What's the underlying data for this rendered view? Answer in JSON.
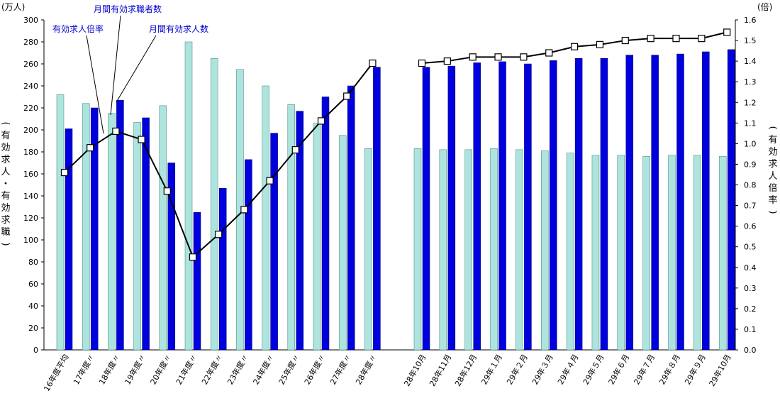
{
  "chart_data": {
    "type": "bar",
    "title": "",
    "left_unit": "(万人)",
    "right_unit": "(倍)",
    "left_axis_label": [
      "(",
      "有",
      "効",
      "求",
      "人",
      "・",
      "有",
      "効",
      "求",
      "職",
      ")"
    ],
    "right_axis_label": [
      "(",
      "有",
      "効",
      "求",
      "人",
      "倍",
      "率",
      ")"
    ],
    "ylim_left": [
      0,
      300
    ],
    "ylim_right": [
      0.0,
      1.6
    ],
    "left_ticks": [
      "0",
      "20",
      "40",
      "60",
      "80",
      "100",
      "120",
      "140",
      "160",
      "180",
      "200",
      "220",
      "240",
      "260",
      "280",
      "300"
    ],
    "right_ticks": [
      "0.0",
      "0.1",
      "0.2",
      "0.3",
      "0.4",
      "0.5",
      "0.6",
      "0.7",
      "0.8",
      "0.9",
      "1.0",
      "1.1",
      "1.2",
      "1.3",
      "1.4",
      "1.5",
      "1.6"
    ],
    "categories": [
      "16年度平均",
      "17年度〃",
      "18年度〃",
      "19年度〃",
      "20年度〃",
      "21年度〃",
      "22年度〃",
      "23年度〃",
      "24年度〃",
      "25年度〃",
      "26年度〃",
      "27年度〃",
      "28年度〃",
      "28年10月",
      "28年11月",
      "28年12月",
      "29年１月",
      "29年２月",
      "29年３月",
      "29年４月",
      "29年５月",
      "29年６月",
      "29年７月",
      "29年８月",
      "29年９月",
      "29年10月"
    ],
    "series": [
      {
        "name": "月間有効求職者数",
        "axis": "left",
        "color": "#aee4de",
        "values": [
          232,
          224,
          215,
          207,
          222,
          280,
          265,
          255,
          240,
          223,
          206,
          195,
          183,
          183,
          182,
          182,
          183,
          182,
          181,
          179,
          177,
          177,
          176,
          177,
          177,
          176
        ]
      },
      {
        "name": "月間有効求人数",
        "axis": "left",
        "color": "#0000dd",
        "values": [
          201,
          220,
          227,
          211,
          170,
          125,
          147,
          173,
          197,
          217,
          230,
          240,
          257,
          257,
          258,
          261,
          262,
          260,
          263,
          265,
          265,
          268,
          268,
          269,
          271,
          273
        ]
      },
      {
        "name": "有効求人倍率",
        "axis": "right",
        "type": "line",
        "values": [
          0.86,
          0.98,
          1.06,
          1.02,
          0.77,
          0.45,
          0.56,
          0.68,
          0.82,
          0.97,
          1.11,
          1.23,
          1.39,
          1.39,
          1.4,
          1.42,
          1.42,
          1.42,
          1.44,
          1.47,
          1.48,
          1.5,
          1.51,
          1.51,
          1.51,
          1.54
        ]
      }
    ],
    "annotations": [
      "月間有効求職者数",
      "有効求人倍率",
      "月間有効求人数"
    ],
    "grid": false
  }
}
